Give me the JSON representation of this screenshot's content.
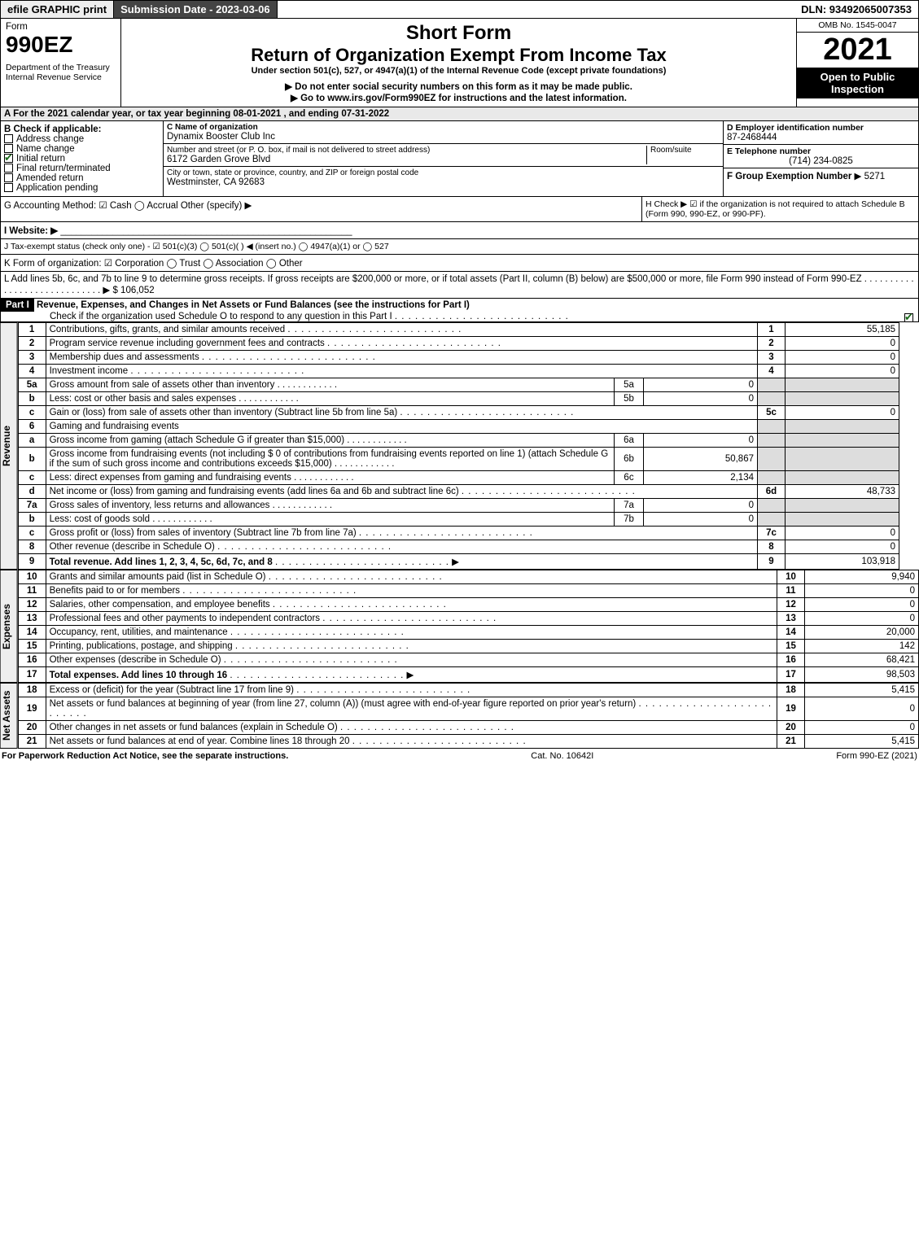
{
  "topbar": {
    "efile": "efile GRAPHIC print",
    "submission": "Submission Date - 2023-03-06",
    "dln": "DLN: 93492065007353"
  },
  "header": {
    "form_word": "Form",
    "form_no": "990EZ",
    "dept": "Department of the Treasury\nInternal Revenue Service",
    "title1": "Short Form",
    "title2": "Return of Organization Exempt From Income Tax",
    "subtitle": "Under section 501(c), 527, or 4947(a)(1) of the Internal Revenue Code (except private foundations)",
    "warn": "▶ Do not enter social security numbers on this form as it may be made public.",
    "goto": "▶ Go to www.irs.gov/Form990EZ for instructions and the latest information.",
    "omb": "OMB No. 1545-0047",
    "year": "2021",
    "badge": "Open to Public Inspection"
  },
  "A": "A  For the 2021 calendar year, or tax year beginning 08-01-2021 , and ending 07-31-2022",
  "B": {
    "label": "B  Check if applicable:",
    "items": [
      "Address change",
      "Name change",
      "Initial return",
      "Final return/terminated",
      "Amended return",
      "Application pending"
    ],
    "checked_idx": 2
  },
  "C": {
    "label": "C Name of organization",
    "name": "Dynamix Booster Club Inc",
    "street_label": "Number and street (or P. O. box, if mail is not delivered to street address)",
    "room_label": "Room/suite",
    "street": "6172 Garden Grove Blvd",
    "city_label": "City or town, state or province, country, and ZIP or foreign postal code",
    "city": "Westminster, CA  92683"
  },
  "D": {
    "label": "D Employer identification number",
    "val": "87-2468444"
  },
  "E": {
    "label": "E Telephone number",
    "val": "(714) 234-0825"
  },
  "F": {
    "label": "F Group Exemption Number",
    "arrow": "▶",
    "val": "5271"
  },
  "G": "G Accounting Method:   ☑ Cash  ◯ Accrual   Other (specify) ▶",
  "H": "H    Check ▶  ☑  if the organization is not required to attach Schedule B (Form 990, 990-EZ, or 990-PF).",
  "I": "I Website: ▶",
  "J": "J Tax-exempt status (check only one) -  ☑ 501(c)(3)  ◯ 501(c)(  )  ◀ (insert no.)  ◯ 4947(a)(1) or  ◯ 527",
  "K": "K Form of organization:  ☑ Corporation   ◯ Trust   ◯ Association   ◯ Other",
  "L": "L Add lines 5b, 6c, and 7b to line 9 to determine gross receipts. If gross receipts are $200,000 or more, or if total assets (Part II, column (B) below) are $500,000 or more, file Form 990 instead of Form 990-EZ  .  .  .  .  .  .  .  .  .  .  .  .  .  .  .  .  .  .  .  .  .  .  .  .  .  .  .  .  .  ▶ $ 106,052",
  "partI": {
    "header_tag": "Part I",
    "header": "Revenue, Expenses, and Changes in Net Assets or Fund Balances (see the instructions for Part I)",
    "check_line": "Check if the organization used Schedule O to respond to any question in this Part I",
    "checked": true
  },
  "revenue": {
    "label": "Revenue",
    "lines": [
      {
        "no": "1",
        "desc": "Contributions, gifts, grants, and similar amounts received",
        "num": "1",
        "val": "55,185"
      },
      {
        "no": "2",
        "desc": "Program service revenue including government fees and contracts",
        "num": "2",
        "val": "0"
      },
      {
        "no": "3",
        "desc": "Membership dues and assessments",
        "num": "3",
        "val": "0"
      },
      {
        "no": "4",
        "desc": "Investment income",
        "num": "4",
        "val": "0"
      },
      {
        "no": "5a",
        "desc": "Gross amount from sale of assets other than inventory",
        "sub": "5a",
        "subval": "0"
      },
      {
        "no": "b",
        "desc": "Less: cost or other basis and sales expenses",
        "sub": "5b",
        "subval": "0"
      },
      {
        "no": "c",
        "desc": "Gain or (loss) from sale of assets other than inventory (Subtract line 5b from line 5a)",
        "num": "5c",
        "val": "0"
      },
      {
        "no": "6",
        "desc": "Gaming and fundraising events"
      },
      {
        "no": "a",
        "desc": "Gross income from gaming (attach Schedule G if greater than $15,000)",
        "sub": "6a",
        "subval": "0"
      },
      {
        "no": "b",
        "desc": "Gross income from fundraising events (not including $  0               of contributions from fundraising events reported on line 1) (attach Schedule G if the sum of such gross income and contributions exceeds $15,000)",
        "sub": "6b",
        "subval": "50,867"
      },
      {
        "no": "c",
        "desc": "Less: direct expenses from gaming and fundraising events",
        "sub": "6c",
        "subval": "2,134"
      },
      {
        "no": "d",
        "desc": "Net income or (loss) from gaming and fundraising events (add lines 6a and 6b and subtract line 6c)",
        "num": "6d",
        "val": "48,733"
      },
      {
        "no": "7a",
        "desc": "Gross sales of inventory, less returns and allowances",
        "sub": "7a",
        "subval": "0"
      },
      {
        "no": "b",
        "desc": "Less: cost of goods sold",
        "sub": "7b",
        "subval": "0"
      },
      {
        "no": "c",
        "desc": "Gross profit or (loss) from sales of inventory (Subtract line 7b from line 7a)",
        "num": "7c",
        "val": "0"
      },
      {
        "no": "8",
        "desc": "Other revenue (describe in Schedule O)",
        "num": "8",
        "val": "0"
      },
      {
        "no": "9",
        "desc": "Total revenue. Add lines 1, 2, 3, 4, 5c, 6d, 7c, and 8",
        "num": "9",
        "val": "103,918",
        "bold": true,
        "arrow": true
      }
    ]
  },
  "expenses": {
    "label": "Expenses",
    "lines": [
      {
        "no": "10",
        "desc": "Grants and similar amounts paid (list in Schedule O)",
        "num": "10",
        "val": "9,940"
      },
      {
        "no": "11",
        "desc": "Benefits paid to or for members",
        "num": "11",
        "val": "0"
      },
      {
        "no": "12",
        "desc": "Salaries, other compensation, and employee benefits",
        "num": "12",
        "val": "0"
      },
      {
        "no": "13",
        "desc": "Professional fees and other payments to independent contractors",
        "num": "13",
        "val": "0"
      },
      {
        "no": "14",
        "desc": "Occupancy, rent, utilities, and maintenance",
        "num": "14",
        "val": "20,000"
      },
      {
        "no": "15",
        "desc": "Printing, publications, postage, and shipping",
        "num": "15",
        "val": "142"
      },
      {
        "no": "16",
        "desc": "Other expenses (describe in Schedule O)",
        "num": "16",
        "val": "68,421"
      },
      {
        "no": "17",
        "desc": "Total expenses. Add lines 10 through 16",
        "num": "17",
        "val": "98,503",
        "bold": true,
        "arrow": true
      }
    ]
  },
  "netassets": {
    "label": "Net Assets",
    "lines": [
      {
        "no": "18",
        "desc": "Excess or (deficit) for the year (Subtract line 17 from line 9)",
        "num": "18",
        "val": "5,415"
      },
      {
        "no": "19",
        "desc": "Net assets or fund balances at beginning of year (from line 27, column (A)) (must agree with end-of-year figure reported on prior year's return)",
        "num": "19",
        "val": "0"
      },
      {
        "no": "20",
        "desc": "Other changes in net assets or fund balances (explain in Schedule O)",
        "num": "20",
        "val": "0"
      },
      {
        "no": "21",
        "desc": "Net assets or fund balances at end of year. Combine lines 18 through 20",
        "num": "21",
        "val": "5,415"
      }
    ]
  },
  "footer": {
    "left": "For Paperwork Reduction Act Notice, see the separate instructions.",
    "mid": "Cat. No. 10642I",
    "right": "Form 990-EZ (2021)"
  },
  "colors": {
    "shade": "#dddddd",
    "badge": "#000000"
  }
}
